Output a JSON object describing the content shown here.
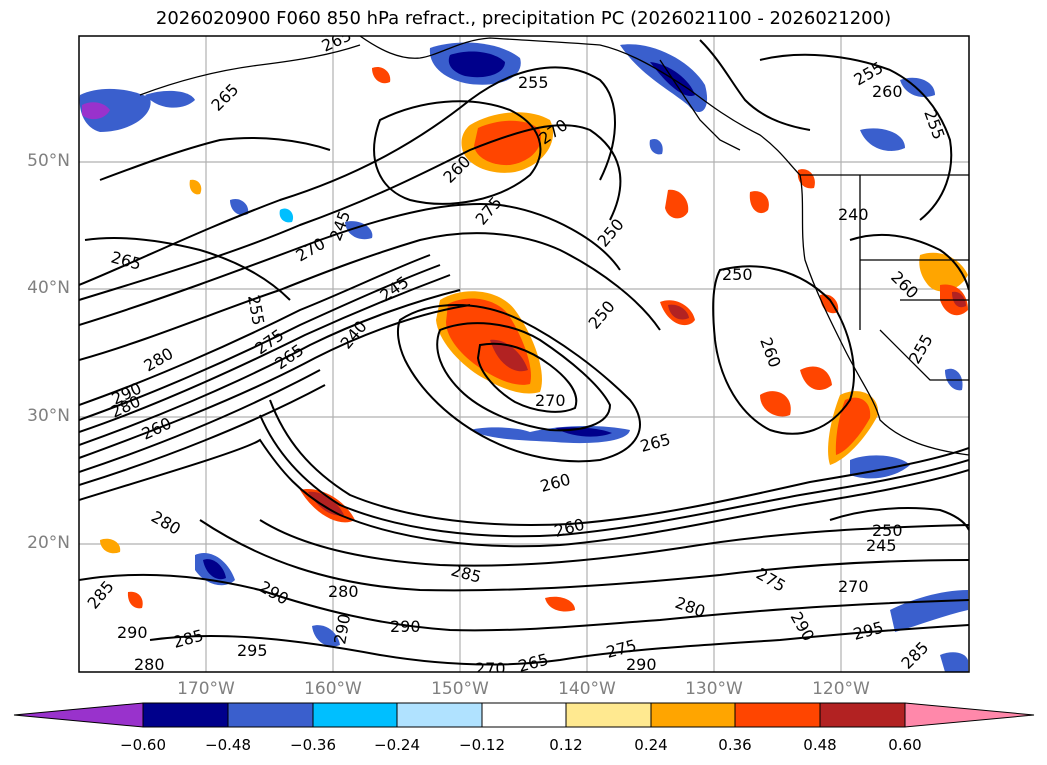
{
  "title": "2026020900 F060 850 hPa refract., precipitation PC (2026021100 - 2026021200)",
  "lat_labels": [
    "50°N",
    "40°N",
    "30°N",
    "20°N"
  ],
  "lon_labels": [
    "170°W",
    "160°W",
    "150°W",
    "140°W",
    "130°W",
    "120°W"
  ],
  "colorbar": {
    "ticks": [
      "−0.60",
      "−0.48",
      "−0.36",
      "−0.24",
      "−0.12",
      "0.12",
      "0.24",
      "0.36",
      "0.48",
      "0.60"
    ],
    "colors": [
      "#9932cc",
      "#00008b",
      "#3a5fcd",
      "#00bfff",
      "#b0e2ff",
      "#ffffff",
      "#ffe990",
      "#ffa500",
      "#ff4500",
      "#b22222",
      "#ff88aa"
    ]
  },
  "contour_labels": [
    "265",
    "255",
    "255",
    "260",
    "255",
    "265",
    "270",
    "260",
    "275",
    "250",
    "245",
    "240",
    "265",
    "250",
    "260",
    "250",
    "255",
    "245",
    "275",
    "265",
    "240",
    "280",
    "260",
    "255",
    "270",
    "265",
    "260",
    "290",
    "260",
    "270",
    "280",
    "285",
    "260",
    "250",
    "245",
    "275",
    "270",
    "280",
    "290",
    "295",
    "285",
    "290",
    "280",
    "290",
    "285",
    "280",
    "295",
    "280",
    "290",
    "290",
    "275",
    "290",
    "265",
    "285",
    "270"
  ]
}
